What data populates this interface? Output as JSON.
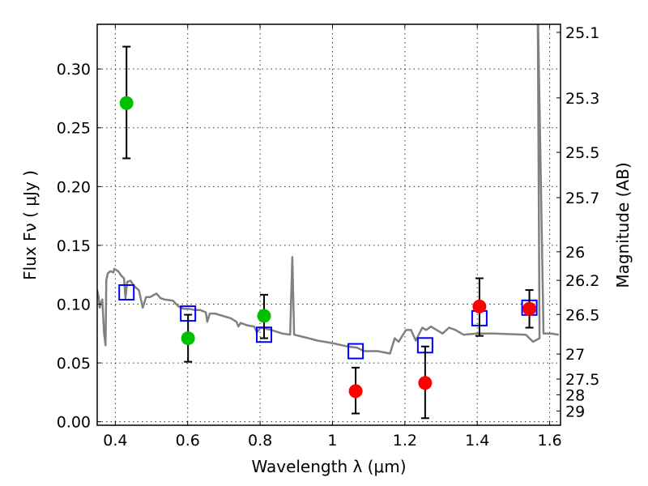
{
  "chart_data": {
    "type": "scatter",
    "title": "",
    "xlabel": "Wavelength  λ (μm)",
    "ylabel": "Flux  Fν  ( μJy )",
    "ylabel_right": "Magnitude (AB)",
    "xlim": [
      0.35,
      1.63
    ],
    "ylim": [
      -0.003,
      0.338
    ],
    "grid": true,
    "xticks": [
      0.4,
      0.6,
      0.8,
      1.0,
      1.2,
      1.4,
      1.6
    ],
    "xtick_labels": [
      "0.4",
      "0.6",
      "0.8",
      "1",
      "1.2",
      "1.4",
      "1.6"
    ],
    "yticks": [
      0.0,
      0.05,
      0.1,
      0.15,
      0.2,
      0.25,
      0.3
    ],
    "ytick_labels": [
      "0.00",
      "0.05",
      "0.10",
      "0.15",
      "0.20",
      "0.25",
      "0.30"
    ],
    "right_ticks": [
      25.1,
      25.3,
      25.5,
      25.7,
      26,
      26.2,
      26.5,
      27,
      27.5,
      28,
      29
    ],
    "right_tick_labels": [
      "25.1",
      "25.3",
      "25.5",
      "25.7",
      "26",
      "26.2",
      "26.5",
      "27",
      "27.5",
      "28",
      "29"
    ],
    "ab_zeropoint": 23.9,
    "colors": {
      "spectrum": "#808080",
      "model": "#0000ff",
      "detection": "#00c000",
      "nondetection": "#ff0000",
      "errorbar": "#000000"
    },
    "series": [
      {
        "name": "spectrum",
        "kind": "line",
        "points": [
          [
            0.349,
            0.113
          ],
          [
            0.354,
            0.106
          ],
          [
            0.357,
            0.097
          ],
          [
            0.364,
            0.104
          ],
          [
            0.369,
            0.075
          ],
          [
            0.373,
            0.065
          ],
          [
            0.375,
            0.12
          ],
          [
            0.379,
            0.126
          ],
          [
            0.386,
            0.128
          ],
          [
            0.395,
            0.127
          ],
          [
            0.397,
            0.13
          ],
          [
            0.408,
            0.128
          ],
          [
            0.417,
            0.124
          ],
          [
            0.424,
            0.122
          ],
          [
            0.428,
            0.105
          ],
          [
            0.433,
            0.119
          ],
          [
            0.442,
            0.12
          ],
          [
            0.453,
            0.115
          ],
          [
            0.465,
            0.112
          ],
          [
            0.476,
            0.097
          ],
          [
            0.485,
            0.106
          ],
          [
            0.496,
            0.106
          ],
          [
            0.514,
            0.109
          ],
          [
            0.525,
            0.105
          ],
          [
            0.536,
            0.104
          ],
          [
            0.559,
            0.103
          ],
          [
            0.575,
            0.098
          ],
          [
            0.588,
            0.096
          ],
          [
            0.604,
            0.096
          ],
          [
            0.619,
            0.095
          ],
          [
            0.634,
            0.095
          ],
          [
            0.65,
            0.093
          ],
          [
            0.654,
            0.085
          ],
          [
            0.661,
            0.092
          ],
          [
            0.675,
            0.092
          ],
          [
            0.697,
            0.09
          ],
          [
            0.719,
            0.088
          ],
          [
            0.735,
            0.085
          ],
          [
            0.74,
            0.081
          ],
          [
            0.746,
            0.084
          ],
          [
            0.764,
            0.082
          ],
          [
            0.784,
            0.081
          ],
          [
            0.791,
            0.076
          ],
          [
            0.802,
            0.08
          ],
          [
            0.831,
            0.078
          ],
          [
            0.862,
            0.075
          ],
          [
            0.883,
            0.074
          ],
          [
            0.889,
            0.14
          ],
          [
            0.894,
            0.074
          ],
          [
            0.921,
            0.072
          ],
          [
            0.959,
            0.069
          ],
          [
            0.997,
            0.067
          ],
          [
            1.041,
            0.064
          ],
          [
            1.068,
            0.063
          ],
          [
            1.087,
            0.06
          ],
          [
            1.125,
            0.06
          ],
          [
            1.159,
            0.058
          ],
          [
            1.172,
            0.071
          ],
          [
            1.183,
            0.068
          ],
          [
            1.203,
            0.078
          ],
          [
            1.217,
            0.078
          ],
          [
            1.23,
            0.069
          ],
          [
            1.248,
            0.08
          ],
          [
            1.259,
            0.078
          ],
          [
            1.272,
            0.081
          ],
          [
            1.304,
            0.075
          ],
          [
            1.322,
            0.08
          ],
          [
            1.34,
            0.078
          ],
          [
            1.362,
            0.074
          ],
          [
            1.4,
            0.075
          ],
          [
            1.429,
            0.075
          ],
          [
            1.445,
            0.075
          ],
          [
            1.534,
            0.074
          ],
          [
            1.554,
            0.068
          ],
          [
            1.572,
            0.071
          ],
          [
            1.567,
            0.36
          ],
          [
            1.583,
            0.075
          ],
          [
            1.603,
            0.075
          ],
          [
            1.625,
            0.074
          ]
        ]
      },
      {
        "name": "model photometry",
        "kind": "open-square",
        "x": [
          0.431,
          0.601,
          0.811,
          1.064,
          1.256,
          1.406,
          1.544
        ],
        "y": [
          0.11,
          0.092,
          0.074,
          0.06,
          0.065,
          0.088,
          0.097
        ]
      },
      {
        "name": "observed (green)",
        "kind": "errorbar",
        "x": [
          0.431,
          0.601,
          0.811
        ],
        "y": [
          0.271,
          0.071,
          0.09
        ],
        "yerr_low": [
          0.224,
          0.051,
          0.071
        ],
        "yerr_high": [
          0.319,
          0.091,
          0.108
        ]
      },
      {
        "name": "observed (red)",
        "kind": "errorbar",
        "x": [
          1.064,
          1.256,
          1.406,
          1.544
        ],
        "y": [
          0.026,
          0.033,
          0.098,
          0.096
        ],
        "yerr_low": [
          0.007,
          0.003,
          0.073,
          0.08
        ],
        "yerr_high": [
          0.046,
          0.064,
          0.122,
          0.112
        ]
      }
    ]
  }
}
